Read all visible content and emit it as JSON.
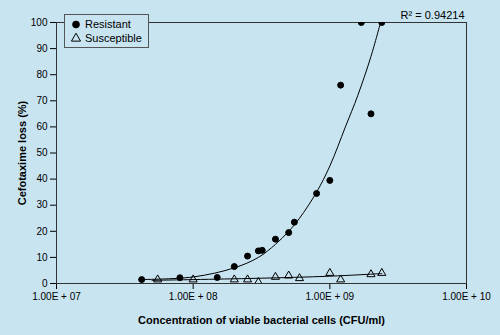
{
  "chart_data": {
    "type": "scatter",
    "x_label": "Concentration of viable bacterial cells (CFU/ml)",
    "y_label": "Cefotaxime loss (%)",
    "log": "x",
    "grid": false,
    "legend": "upper left",
    "xlim": [
      10000000,
      10000000000
    ],
    "xticks": [
      {
        "value": 10000000,
        "label": "1.00E + 07"
      },
      {
        "value": 100000000,
        "label": "1.00E + 08"
      },
      {
        "value": 1000000000,
        "label": "1.00E + 09"
      },
      {
        "value": 10000000000,
        "label": "1.00E + 10"
      }
    ],
    "ylim": [
      0,
      100
    ],
    "yticks": [
      0,
      10,
      20,
      30,
      40,
      50,
      60,
      70,
      80,
      90,
      100
    ],
    "annotations": [
      "R² = 0.94214"
    ],
    "series": [
      {
        "name": "Resistant",
        "color": "#000000",
        "marker": "circle",
        "x": [
          42000000,
          80000000,
          150000000,
          200000000,
          250000000,
          300000000,
          320000000,
          400000000,
          500000000,
          550000000,
          800000000,
          1000000000,
          1200000000,
          1700000000,
          2000000000,
          2400000000
        ],
        "values": [
          1.5,
          2.2,
          2.3,
          6.5,
          10.5,
          12.5,
          12.7,
          17,
          19.5,
          23.5,
          34.5,
          39.5,
          76,
          100,
          65,
          100
        ],
        "trend": {
          "x": [
            40000000,
            100000000,
            200000000,
            300000000,
            400000000,
            500000000,
            600000000,
            800000000,
            1000000000,
            1300000000,
            1600000000,
            2000000000,
            2350000000
          ],
          "values": [
            1.5,
            2.5,
            6,
            10,
            15,
            20,
            25,
            35,
            45,
            60,
            72,
            87,
            100
          ]
        }
      },
      {
        "name": "Susceptible",
        "color": "#000000",
        "marker": "open-triangle",
        "x": [
          55000000,
          100000000,
          200000000,
          250000000,
          300000000,
          400000000,
          500000000,
          600000000,
          1000000000,
          1200000000,
          2000000000,
          2400000000
        ],
        "values": [
          1.5,
          1.5,
          1.5,
          1.5,
          0.5,
          2.5,
          3,
          2,
          4,
          1.5,
          3.5,
          4
        ],
        "trend": {
          "x": [
            50000000,
            100000000,
            300000000,
            1000000000,
            2400000000
          ],
          "values": [
            1.2,
            1.5,
            2,
            2.8,
            3.8
          ]
        }
      }
    ]
  }
}
